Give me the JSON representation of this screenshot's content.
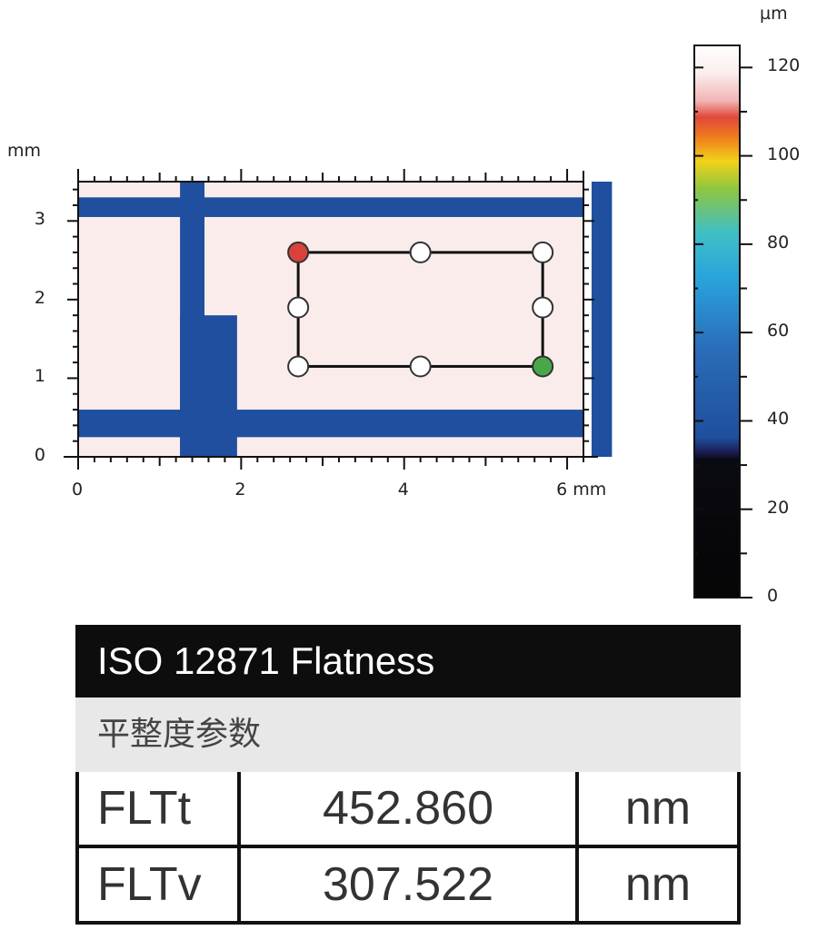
{
  "chart_data": {
    "type": "heatmap",
    "x_unit": "mm",
    "y_unit": "mm",
    "xlim": [
      0,
      6.2
    ],
    "ylim": [
      0,
      3.5
    ],
    "x_ticks": [
      "0",
      "2",
      "4",
      "6 mm"
    ],
    "y_ticks": [
      "0",
      "1",
      "2",
      "3"
    ],
    "y_axis_unit_label": "mm",
    "grooves": [
      {
        "x0": 0,
        "x1": 6.2,
        "y0": 0.25,
        "y1": 0.6
      },
      {
        "x0": 0,
        "x1": 6.2,
        "y0": 3.05,
        "y1": 3.3
      },
      {
        "x0": 1.25,
        "x1": 1.55,
        "y0": 0,
        "y1": 3.5
      },
      {
        "x0": 1.25,
        "x1": 1.95,
        "y0": 0,
        "y1": 1.8
      },
      {
        "x0": 6.3,
        "x1": 6.55,
        "y0": 0,
        "y1": 3.5
      }
    ],
    "measurement_points": [
      {
        "x": 2.7,
        "y": 2.6,
        "state": "red"
      },
      {
        "x": 4.2,
        "y": 2.6,
        "state": "white"
      },
      {
        "x": 5.7,
        "y": 2.6,
        "state": "white"
      },
      {
        "x": 2.7,
        "y": 1.9,
        "state": "white"
      },
      {
        "x": 5.7,
        "y": 1.9,
        "state": "white"
      },
      {
        "x": 2.7,
        "y": 1.15,
        "state": "white"
      },
      {
        "x": 4.2,
        "y": 1.15,
        "state": "white"
      },
      {
        "x": 5.7,
        "y": 1.15,
        "state": "green"
      }
    ],
    "colorbar": {
      "unit": "µm",
      "range": [
        0,
        125
      ],
      "ticks": [
        "0",
        "20",
        "40",
        "60",
        "80",
        "100",
        "120"
      ],
      "tick_values": [
        0,
        20,
        40,
        60,
        80,
        100,
        120
      ]
    },
    "colors": {
      "surface": "#fbecec",
      "groove": "#1f4f9e",
      "point_red": "#d9413a",
      "point_green": "#48a848"
    }
  },
  "table": {
    "title": "ISO 12871 Flatness",
    "subtitle": "平整度参数",
    "rows": [
      {
        "name": "FLTt",
        "value": "452.860",
        "unit": "nm"
      },
      {
        "name": "FLTv",
        "value": "307.522",
        "unit": "nm"
      }
    ]
  }
}
